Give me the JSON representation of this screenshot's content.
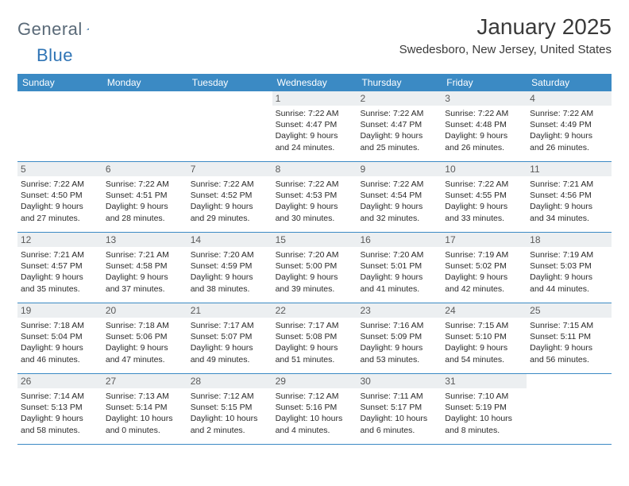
{
  "logo": {
    "general": "General",
    "blue": "Blue"
  },
  "header": {
    "title": "January 2025",
    "location": "Swedesboro, New Jersey, United States"
  },
  "colors": {
    "header_bg": "#3b8ac4",
    "header_text": "#ffffff",
    "daynum_bg": "#eceff1",
    "border": "#3b8ac4",
    "body_text": "#2a2a2a",
    "logo_gray": "#5a6a78",
    "logo_blue": "#2f74b5"
  },
  "dayNames": [
    "Sunday",
    "Monday",
    "Tuesday",
    "Wednesday",
    "Thursday",
    "Friday",
    "Saturday"
  ],
  "weeks": [
    [
      {
        "n": "",
        "sr": "",
        "ss": "",
        "dl": ""
      },
      {
        "n": "",
        "sr": "",
        "ss": "",
        "dl": ""
      },
      {
        "n": "",
        "sr": "",
        "ss": "",
        "dl": ""
      },
      {
        "n": "1",
        "sr": "Sunrise: 7:22 AM",
        "ss": "Sunset: 4:47 PM",
        "dl": "Daylight: 9 hours and 24 minutes."
      },
      {
        "n": "2",
        "sr": "Sunrise: 7:22 AM",
        "ss": "Sunset: 4:47 PM",
        "dl": "Daylight: 9 hours and 25 minutes."
      },
      {
        "n": "3",
        "sr": "Sunrise: 7:22 AM",
        "ss": "Sunset: 4:48 PM",
        "dl": "Daylight: 9 hours and 26 minutes."
      },
      {
        "n": "4",
        "sr": "Sunrise: 7:22 AM",
        "ss": "Sunset: 4:49 PM",
        "dl": "Daylight: 9 hours and 26 minutes."
      }
    ],
    [
      {
        "n": "5",
        "sr": "Sunrise: 7:22 AM",
        "ss": "Sunset: 4:50 PM",
        "dl": "Daylight: 9 hours and 27 minutes."
      },
      {
        "n": "6",
        "sr": "Sunrise: 7:22 AM",
        "ss": "Sunset: 4:51 PM",
        "dl": "Daylight: 9 hours and 28 minutes."
      },
      {
        "n": "7",
        "sr": "Sunrise: 7:22 AM",
        "ss": "Sunset: 4:52 PM",
        "dl": "Daylight: 9 hours and 29 minutes."
      },
      {
        "n": "8",
        "sr": "Sunrise: 7:22 AM",
        "ss": "Sunset: 4:53 PM",
        "dl": "Daylight: 9 hours and 30 minutes."
      },
      {
        "n": "9",
        "sr": "Sunrise: 7:22 AM",
        "ss": "Sunset: 4:54 PM",
        "dl": "Daylight: 9 hours and 32 minutes."
      },
      {
        "n": "10",
        "sr": "Sunrise: 7:22 AM",
        "ss": "Sunset: 4:55 PM",
        "dl": "Daylight: 9 hours and 33 minutes."
      },
      {
        "n": "11",
        "sr": "Sunrise: 7:21 AM",
        "ss": "Sunset: 4:56 PM",
        "dl": "Daylight: 9 hours and 34 minutes."
      }
    ],
    [
      {
        "n": "12",
        "sr": "Sunrise: 7:21 AM",
        "ss": "Sunset: 4:57 PM",
        "dl": "Daylight: 9 hours and 35 minutes."
      },
      {
        "n": "13",
        "sr": "Sunrise: 7:21 AM",
        "ss": "Sunset: 4:58 PM",
        "dl": "Daylight: 9 hours and 37 minutes."
      },
      {
        "n": "14",
        "sr": "Sunrise: 7:20 AM",
        "ss": "Sunset: 4:59 PM",
        "dl": "Daylight: 9 hours and 38 minutes."
      },
      {
        "n": "15",
        "sr": "Sunrise: 7:20 AM",
        "ss": "Sunset: 5:00 PM",
        "dl": "Daylight: 9 hours and 39 minutes."
      },
      {
        "n": "16",
        "sr": "Sunrise: 7:20 AM",
        "ss": "Sunset: 5:01 PM",
        "dl": "Daylight: 9 hours and 41 minutes."
      },
      {
        "n": "17",
        "sr": "Sunrise: 7:19 AM",
        "ss": "Sunset: 5:02 PM",
        "dl": "Daylight: 9 hours and 42 minutes."
      },
      {
        "n": "18",
        "sr": "Sunrise: 7:19 AM",
        "ss": "Sunset: 5:03 PM",
        "dl": "Daylight: 9 hours and 44 minutes."
      }
    ],
    [
      {
        "n": "19",
        "sr": "Sunrise: 7:18 AM",
        "ss": "Sunset: 5:04 PM",
        "dl": "Daylight: 9 hours and 46 minutes."
      },
      {
        "n": "20",
        "sr": "Sunrise: 7:18 AM",
        "ss": "Sunset: 5:06 PM",
        "dl": "Daylight: 9 hours and 47 minutes."
      },
      {
        "n": "21",
        "sr": "Sunrise: 7:17 AM",
        "ss": "Sunset: 5:07 PM",
        "dl": "Daylight: 9 hours and 49 minutes."
      },
      {
        "n": "22",
        "sr": "Sunrise: 7:17 AM",
        "ss": "Sunset: 5:08 PM",
        "dl": "Daylight: 9 hours and 51 minutes."
      },
      {
        "n": "23",
        "sr": "Sunrise: 7:16 AM",
        "ss": "Sunset: 5:09 PM",
        "dl": "Daylight: 9 hours and 53 minutes."
      },
      {
        "n": "24",
        "sr": "Sunrise: 7:15 AM",
        "ss": "Sunset: 5:10 PM",
        "dl": "Daylight: 9 hours and 54 minutes."
      },
      {
        "n": "25",
        "sr": "Sunrise: 7:15 AM",
        "ss": "Sunset: 5:11 PM",
        "dl": "Daylight: 9 hours and 56 minutes."
      }
    ],
    [
      {
        "n": "26",
        "sr": "Sunrise: 7:14 AM",
        "ss": "Sunset: 5:13 PM",
        "dl": "Daylight: 9 hours and 58 minutes."
      },
      {
        "n": "27",
        "sr": "Sunrise: 7:13 AM",
        "ss": "Sunset: 5:14 PM",
        "dl": "Daylight: 10 hours and 0 minutes."
      },
      {
        "n": "28",
        "sr": "Sunrise: 7:12 AM",
        "ss": "Sunset: 5:15 PM",
        "dl": "Daylight: 10 hours and 2 minutes."
      },
      {
        "n": "29",
        "sr": "Sunrise: 7:12 AM",
        "ss": "Sunset: 5:16 PM",
        "dl": "Daylight: 10 hours and 4 minutes."
      },
      {
        "n": "30",
        "sr": "Sunrise: 7:11 AM",
        "ss": "Sunset: 5:17 PM",
        "dl": "Daylight: 10 hours and 6 minutes."
      },
      {
        "n": "31",
        "sr": "Sunrise: 7:10 AM",
        "ss": "Sunset: 5:19 PM",
        "dl": "Daylight: 10 hours and 8 minutes."
      },
      {
        "n": "",
        "sr": "",
        "ss": "",
        "dl": ""
      }
    ]
  ]
}
